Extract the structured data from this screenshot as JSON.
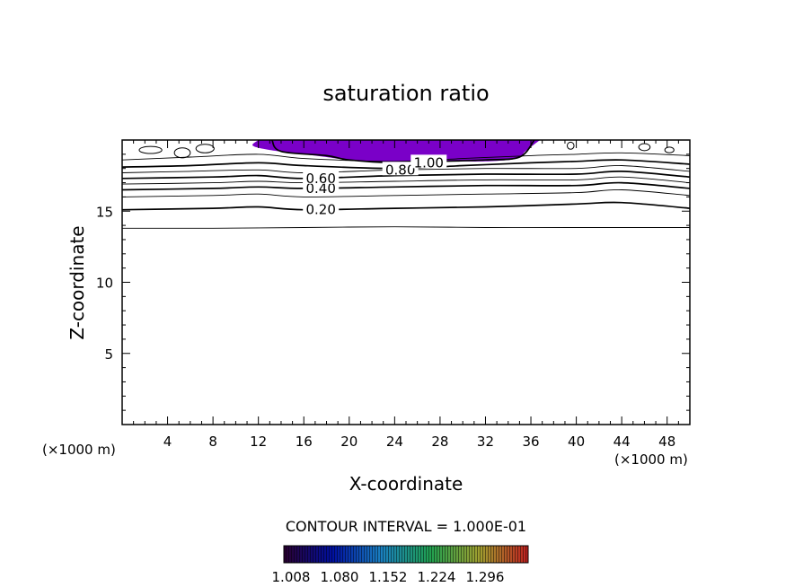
{
  "chart_data": {
    "type": "contour",
    "title": "saturation ratio",
    "xlabel": "X-coordinate",
    "ylabel": "Z-coordinate",
    "x_unit": "(×1000 m)",
    "x_unit_right": "(×1000 m)",
    "xlim": [
      0,
      50
    ],
    "ylim": [
      0,
      20
    ],
    "x_ticks": [
      4,
      8,
      12,
      16,
      20,
      24,
      28,
      32,
      36,
      40,
      44,
      48
    ],
    "y_ticks": [
      5,
      10,
      15
    ],
    "contour_interval_text": "CONTOUR INTERVAL = 1.000E-01",
    "contour_labels": [
      {
        "text": "0.20",
        "x": 17.5,
        "z": 15.1
      },
      {
        "text": "0.40",
        "x": 17.5,
        "z": 16.6
      },
      {
        "text": "0.60",
        "x": 17.5,
        "z": 17.3
      },
      {
        "text": "0.80",
        "x": 24.5,
        "z": 17.9
      },
      {
        "text": "1.00",
        "x": 27.0,
        "z": 18.4
      }
    ],
    "contour_lines": [
      {
        "level": 0.1,
        "bold": false,
        "points": [
          [
            0,
            13.8
          ],
          [
            8,
            13.8
          ],
          [
            16,
            13.85
          ],
          [
            24,
            13.9
          ],
          [
            32,
            13.85
          ],
          [
            40,
            13.85
          ],
          [
            50,
            13.85
          ]
        ]
      },
      {
        "level": 0.2,
        "bold": true,
        "points": [
          [
            0,
            15.1
          ],
          [
            8,
            15.2
          ],
          [
            12,
            15.3
          ],
          [
            16,
            15.1
          ],
          [
            24,
            15.2
          ],
          [
            32,
            15.3
          ],
          [
            40,
            15.5
          ],
          [
            44,
            15.6
          ],
          [
            50,
            15.2
          ]
        ]
      },
      {
        "level": 0.3,
        "bold": false,
        "points": [
          [
            0,
            16.0
          ],
          [
            8,
            16.1
          ],
          [
            12,
            16.2
          ],
          [
            16,
            16.0
          ],
          [
            24,
            16.1
          ],
          [
            32,
            16.2
          ],
          [
            40,
            16.3
          ],
          [
            44,
            16.5
          ],
          [
            50,
            16.1
          ]
        ]
      },
      {
        "level": 0.4,
        "bold": true,
        "points": [
          [
            0,
            16.5
          ],
          [
            8,
            16.6
          ],
          [
            12,
            16.7
          ],
          [
            16,
            16.6
          ],
          [
            24,
            16.7
          ],
          [
            32,
            16.8
          ],
          [
            40,
            16.8
          ],
          [
            44,
            17.0
          ],
          [
            50,
            16.6
          ]
        ]
      },
      {
        "level": 0.5,
        "bold": false,
        "points": [
          [
            0,
            16.9
          ],
          [
            8,
            17.0
          ],
          [
            12,
            17.1
          ],
          [
            16,
            17.0
          ],
          [
            24,
            17.1
          ],
          [
            32,
            17.2
          ],
          [
            40,
            17.2
          ],
          [
            44,
            17.4
          ],
          [
            50,
            17.0
          ]
        ]
      },
      {
        "level": 0.6,
        "bold": true,
        "points": [
          [
            0,
            17.3
          ],
          [
            8,
            17.4
          ],
          [
            12,
            17.5
          ],
          [
            16,
            17.3
          ],
          [
            24,
            17.5
          ],
          [
            32,
            17.6
          ],
          [
            40,
            17.6
          ],
          [
            44,
            17.8
          ],
          [
            50,
            17.4
          ]
        ]
      },
      {
        "level": 0.7,
        "bold": false,
        "points": [
          [
            0,
            17.7
          ],
          [
            6,
            17.8
          ],
          [
            12,
            17.9
          ],
          [
            16,
            17.7
          ],
          [
            24,
            17.9
          ],
          [
            32,
            18.0
          ],
          [
            40,
            18.0
          ],
          [
            44,
            18.2
          ],
          [
            50,
            17.8
          ]
        ]
      },
      {
        "level": 0.8,
        "bold": true,
        "points": [
          [
            0,
            18.1
          ],
          [
            6,
            18.2
          ],
          [
            12,
            18.4
          ],
          [
            16,
            18.2
          ],
          [
            24,
            18.0
          ],
          [
            30,
            18.2
          ],
          [
            36,
            18.4
          ],
          [
            40,
            18.5
          ],
          [
            44,
            18.6
          ],
          [
            50,
            18.3
          ]
        ]
      },
      {
        "level": 0.9,
        "bold": false,
        "points": [
          [
            0,
            18.6
          ],
          [
            6,
            18.8
          ],
          [
            12,
            19.0
          ],
          [
            16,
            18.7
          ],
          [
            24,
            18.5
          ],
          [
            30,
            18.7
          ],
          [
            36,
            18.9
          ],
          [
            40,
            19.0
          ],
          [
            44,
            19.1
          ],
          [
            50,
            18.9
          ]
        ]
      },
      {
        "level": 1.0,
        "bold": true,
        "points": [
          [
            13.2,
            20
          ],
          [
            14,
            19.2
          ],
          [
            18,
            18.9
          ],
          [
            20,
            18.6
          ],
          [
            24,
            18.4
          ],
          [
            28,
            18.5
          ],
          [
            32,
            18.6
          ],
          [
            35,
            18.8
          ],
          [
            36.3,
            20
          ]
        ]
      }
    ],
    "filled_region": {
      "color": "#7a00c8",
      "points": [
        [
          12,
          20
        ],
        [
          11.5,
          19.6
        ],
        [
          13,
          19.3
        ],
        [
          16,
          19.0
        ],
        [
          18,
          18.8
        ],
        [
          20,
          18.6
        ],
        [
          24,
          18.4
        ],
        [
          28,
          18.5
        ],
        [
          32,
          18.5
        ],
        [
          34.8,
          18.7
        ],
        [
          35.5,
          19.2
        ],
        [
          36.8,
          20
        ]
      ]
    },
    "colorbar": {
      "labels": [
        "1.008",
        "1.080",
        "1.152",
        "1.224",
        "1.296"
      ],
      "stops": [
        "#2a0030",
        "#0010a0",
        "#1a80c0",
        "#20a050",
        "#a0a030",
        "#c02020"
      ]
    }
  }
}
